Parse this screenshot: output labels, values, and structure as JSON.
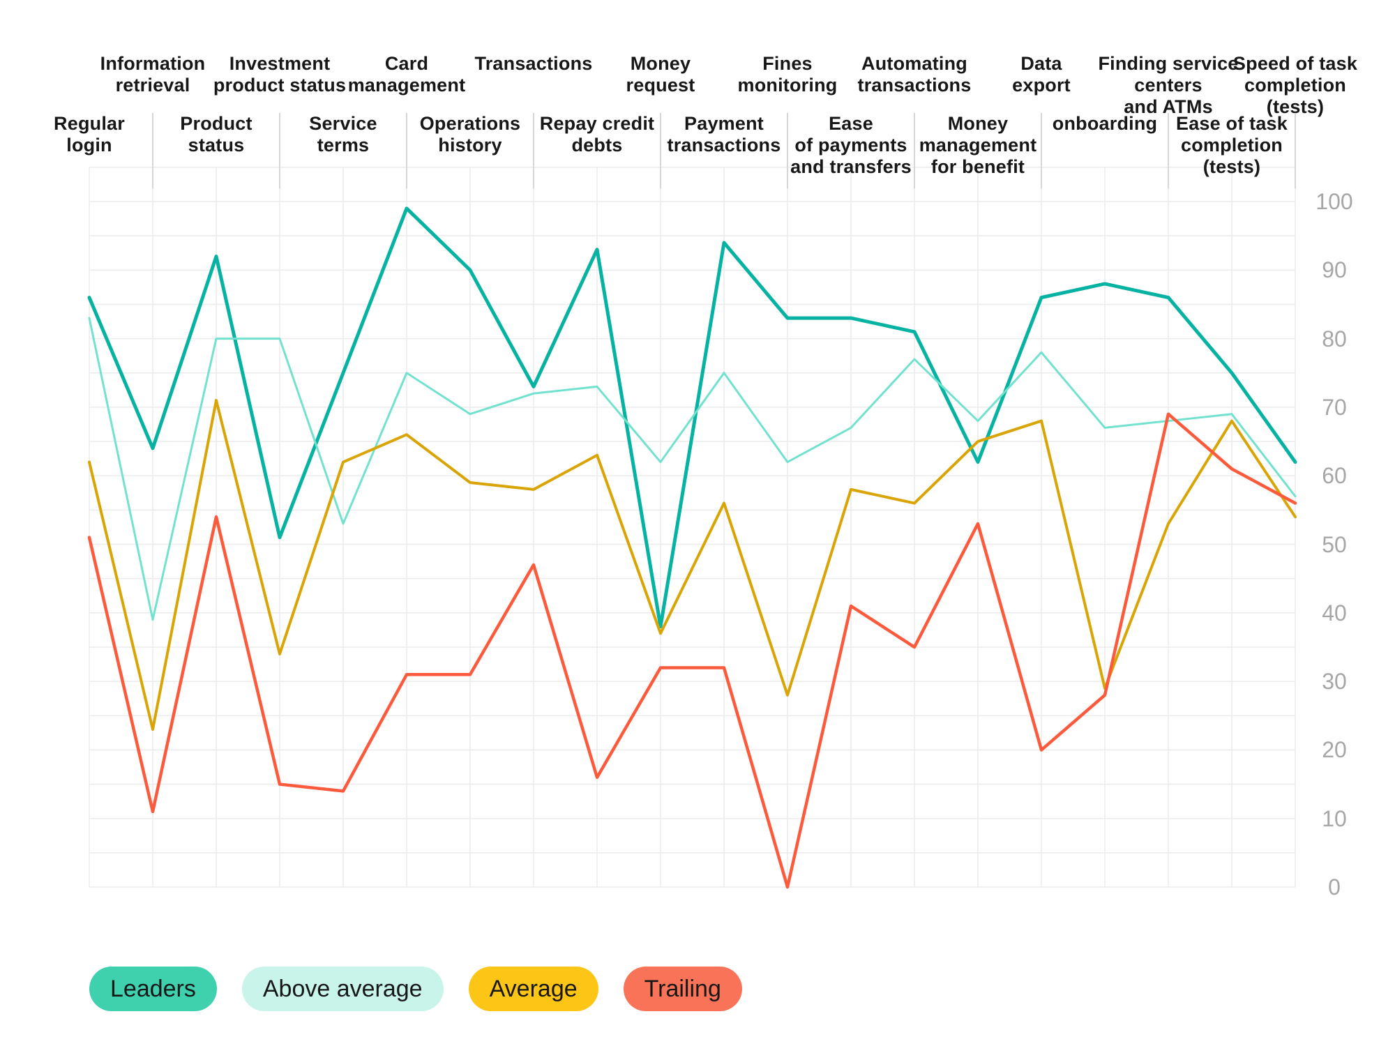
{
  "chart_data": {
    "type": "line",
    "title": "",
    "xlabel": "",
    "ylabel": "",
    "grid": true,
    "grid_step": 5,
    "legend_position": "bottom-left",
    "y_axis": {
      "side": "right",
      "min": 0,
      "max": 100,
      "tick_step": 10,
      "tick_labels": [
        "0",
        "10",
        "20",
        "30",
        "40",
        "50",
        "60",
        "70",
        "80",
        "90",
        "100"
      ]
    },
    "categories": [
      {
        "label": "Regular\nlogin",
        "row": "bottom"
      },
      {
        "label": "Information\nretrieval",
        "row": "top"
      },
      {
        "label": "Product\nstatus",
        "row": "bottom"
      },
      {
        "label": "Investment\nproduct status",
        "row": "top"
      },
      {
        "label": "Service\nterms",
        "row": "bottom"
      },
      {
        "label": "Card\nmanagement",
        "row": "top"
      },
      {
        "label": "Operations\nhistory",
        "row": "bottom"
      },
      {
        "label": "Transactions",
        "row": "top"
      },
      {
        "label": "Repay credit\ndebts",
        "row": "bottom"
      },
      {
        "label": "Money\nrequest",
        "row": "top"
      },
      {
        "label": "Payment\ntransactions",
        "row": "bottom"
      },
      {
        "label": "Fines\nmonitoring",
        "row": "top"
      },
      {
        "label": "Ease\nof payments\nand transfers",
        "row": "bottom"
      },
      {
        "label": "Automating\ntransactions",
        "row": "top"
      },
      {
        "label": "Money\nmanagement\nfor benefit",
        "row": "bottom"
      },
      {
        "label": "Data\nexport",
        "row": "top"
      },
      {
        "label": "onboarding",
        "row": "bottom"
      },
      {
        "label": "Finding service\ncenters\nand ATMs",
        "row": "top"
      },
      {
        "label": "Ease of task\ncompletion\n(tests)",
        "row": "bottom"
      },
      {
        "label": "Speed of task\ncompletion\n(tests)",
        "row": "top"
      }
    ],
    "series": [
      {
        "name": "Leaders",
        "line_color": "#06b2a1",
        "legend_color": "#3fd0ae",
        "stroke_width": 5,
        "values": [
          86,
          64,
          92,
          51,
          75,
          99,
          90,
          73,
          93,
          38,
          94,
          83,
          83,
          81,
          62,
          86,
          88,
          86,
          75,
          62
        ]
      },
      {
        "name": "Above average",
        "line_color": "#72e2ce",
        "legend_color": "#c9f4e9",
        "stroke_width": 3,
        "values": [
          83,
          39,
          80,
          80,
          53,
          75,
          69,
          72,
          73,
          62,
          75,
          62,
          67,
          77,
          68,
          78,
          67,
          68,
          69,
          57
        ]
      },
      {
        "name": "Average",
        "line_color": "#d9a506",
        "legend_color": "#fdc515",
        "stroke_width": 4,
        "values": [
          62,
          23,
          71,
          34,
          62,
          66,
          59,
          58,
          63,
          37,
          56,
          28,
          58,
          56,
          65,
          68,
          29,
          53,
          68,
          54
        ]
      },
      {
        "name": "Trailing",
        "line_color": "#fc5a3c",
        "legend_color": "#f97358",
        "stroke_width": 4.5,
        "values": [
          51,
          11,
          54,
          15,
          14,
          31,
          31,
          47,
          16,
          32,
          32,
          0,
          41,
          35,
          53,
          20,
          28,
          69,
          61,
          56
        ]
      }
    ]
  },
  "colors": {
    "background": "#ffffff",
    "gridline": "#ebebeb",
    "separator": "#d6d6d6",
    "axis_label": "#a6a6a6",
    "label_text": "#171717"
  }
}
